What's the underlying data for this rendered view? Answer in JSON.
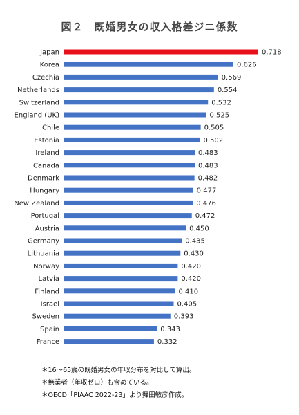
{
  "chart_data": {
    "type": "bar",
    "orientation": "horizontal",
    "title": "図２　既婚男女の収入格差ジニ係数",
    "xlabel": "",
    "ylabel": "",
    "xlim": [
      0,
      0.75
    ],
    "grid": false,
    "legend": "none",
    "highlight_color": "#e8101a",
    "bar_color": "#4472c4",
    "highlight_category": "Japan",
    "categories": [
      "Japan",
      "Korea",
      "Czechia",
      "Netherlands",
      "Switzerland",
      "England (UK)",
      "Chile",
      "Estonia",
      "Ireland",
      "Canada",
      "Denmark",
      "Hungary",
      "New Zealand",
      "Portugal",
      "Austria",
      "Germany",
      "Lithuania",
      "Norway",
      "Latvia",
      "Finland",
      "Israel",
      "Sweden",
      "Spain",
      "France"
    ],
    "values": [
      0.718,
      0.626,
      0.569,
      0.554,
      0.532,
      0.525,
      0.505,
      0.502,
      0.483,
      0.483,
      0.482,
      0.477,
      0.476,
      0.472,
      0.45,
      0.435,
      0.43,
      0.42,
      0.42,
      0.41,
      0.405,
      0.393,
      0.343,
      0.332
    ],
    "value_labels": [
      "0.718",
      "0.626",
      "0.569",
      "0.554",
      "0.532",
      "0.525",
      "0.505",
      "0.502",
      "0.483",
      "0.483",
      "0.482",
      "0.477",
      "0.476",
      "0.472",
      "0.450",
      "0.435",
      "0.430",
      "0.420",
      "0.420",
      "0.410",
      "0.405",
      "0.393",
      "0.343",
      "0.332"
    ]
  },
  "notes": [
    "＊16〜65歳の既婚男女の年収分布を対比して算出。",
    "＊無業者（年収ゼロ）も含めている。",
    "＊OECD「PIAAC 2022-23」より舞田敏彦作成。"
  ]
}
